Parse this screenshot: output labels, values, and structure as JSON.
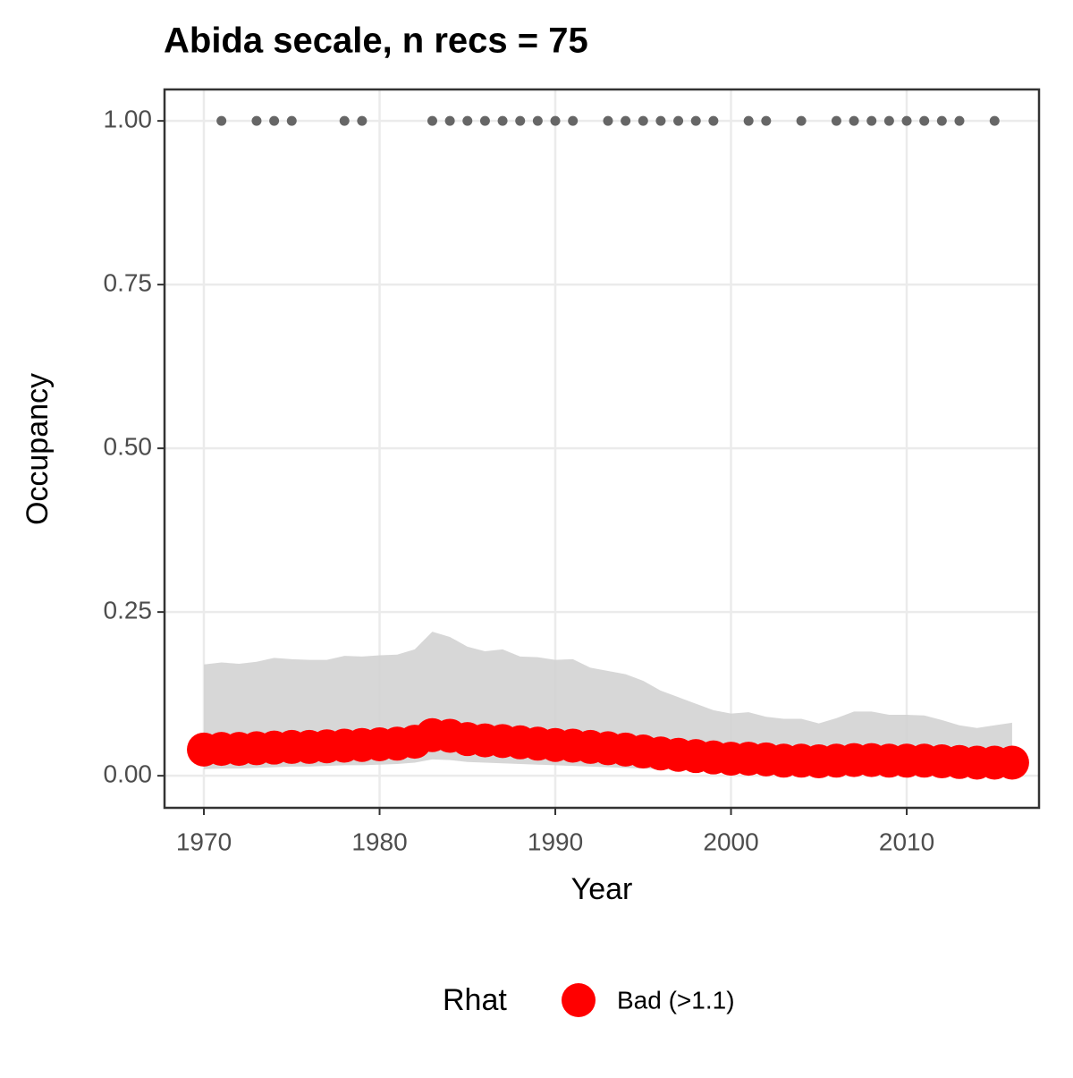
{
  "chart_data": {
    "type": "line",
    "title": "Abida secale, n recs = 75",
    "x_label": "Year",
    "y_label": "Occupancy",
    "legend_title": "Rhat",
    "x": [
      1970,
      1971,
      1972,
      1973,
      1974,
      1975,
      1976,
      1977,
      1978,
      1979,
      1980,
      1981,
      1982,
      1983,
      1984,
      1985,
      1986,
      1987,
      1988,
      1989,
      1990,
      1991,
      1992,
      1993,
      1994,
      1995,
      1996,
      1997,
      1998,
      1999,
      2000,
      2001,
      2002,
      2003,
      2004,
      2005,
      2006,
      2007,
      2008,
      2009,
      2010,
      2011,
      2012,
      2013,
      2014,
      2015,
      2016
    ],
    "series": [
      {
        "name": "Bad (>1.1)",
        "color": "#ff0000",
        "values": [
          0.04,
          0.041,
          0.041,
          0.042,
          0.043,
          0.044,
          0.044,
          0.045,
          0.046,
          0.047,
          0.048,
          0.049,
          0.052,
          0.062,
          0.061,
          0.056,
          0.054,
          0.053,
          0.051,
          0.049,
          0.047,
          0.046,
          0.044,
          0.042,
          0.04,
          0.037,
          0.034,
          0.032,
          0.03,
          0.028,
          0.026,
          0.026,
          0.025,
          0.023,
          0.023,
          0.022,
          0.023,
          0.024,
          0.024,
          0.023,
          0.023,
          0.023,
          0.022,
          0.021,
          0.02,
          0.02,
          0.02
        ]
      }
    ],
    "band": {
      "color": "#d3d3d3",
      "lower": [
        0.01,
        0.011,
        0.011,
        0.012,
        0.013,
        0.014,
        0.014,
        0.015,
        0.016,
        0.016,
        0.017,
        0.018,
        0.02,
        0.025,
        0.024,
        0.021,
        0.02,
        0.019,
        0.018,
        0.017,
        0.016,
        0.015,
        0.014,
        0.013,
        0.012,
        0.011,
        0.01,
        0.009,
        0.008,
        0.008,
        0.007,
        0.007,
        0.007,
        0.006,
        0.006,
        0.006,
        0.006,
        0.006,
        0.006,
        0.006,
        0.006,
        0.006,
        0.005,
        0.005,
        0.005,
        0.005,
        0.005
      ],
      "upper": [
        0.17,
        0.173,
        0.171,
        0.174,
        0.18,
        0.178,
        0.177,
        0.177,
        0.183,
        0.182,
        0.184,
        0.185,
        0.193,
        0.22,
        0.212,
        0.197,
        0.19,
        0.193,
        0.182,
        0.181,
        0.177,
        0.178,
        0.165,
        0.16,
        0.155,
        0.145,
        0.13,
        0.12,
        0.11,
        0.1,
        0.095,
        0.097,
        0.09,
        0.087,
        0.087,
        0.08,
        0.088,
        0.098,
        0.098,
        0.093,
        0.093,
        0.092,
        0.085,
        0.077,
        0.073,
        0.077,
        0.081
      ]
    },
    "detections": {
      "color": "#666666",
      "x": [
        1971,
        1973,
        1974,
        1975,
        1978,
        1979,
        1983,
        1984,
        1985,
        1986,
        1987,
        1988,
        1989,
        1990,
        1991,
        1993,
        1994,
        1995,
        1996,
        1997,
        1998,
        1999,
        2001,
        2002,
        2004,
        2006,
        2007,
        2008,
        2009,
        2010,
        2011,
        2012,
        2013,
        2015
      ],
      "values": [
        1,
        1,
        1,
        1,
        1,
        1,
        1,
        1,
        1,
        1,
        1,
        1,
        1,
        1,
        1,
        1,
        1,
        1,
        1,
        1,
        1,
        1,
        1,
        1,
        1,
        1,
        1,
        1,
        1,
        1,
        1,
        1,
        1,
        1
      ]
    },
    "xlim": [
      1967.76,
      2017.53
    ],
    "ylim": [
      -0.049,
      1.048
    ],
    "xticks": [
      1970,
      1980,
      1990,
      2000,
      2010
    ],
    "yticks": [
      {
        "value": 0,
        "label": "0.00"
      },
      {
        "value": 0.25,
        "label": "0.25"
      },
      {
        "value": 0.5,
        "label": "0.50"
      },
      {
        "value": 0.75,
        "label": "0.75"
      },
      {
        "value": 1,
        "label": "1.00"
      }
    ],
    "grid": true,
    "legend_position": "bottom"
  }
}
